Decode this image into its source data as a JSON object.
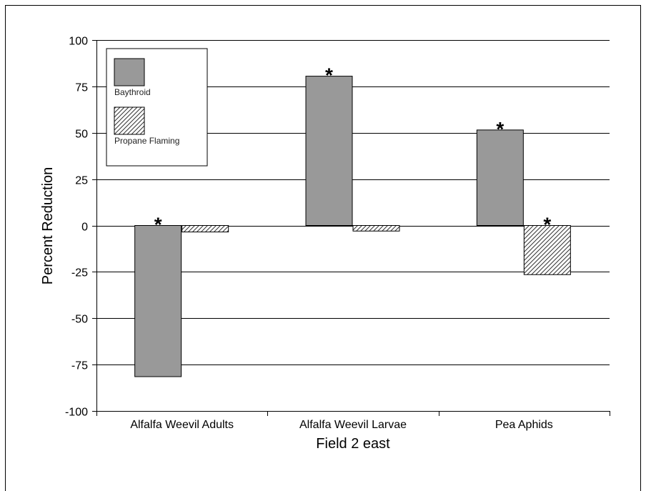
{
  "chart_data": {
    "type": "bar",
    "xlabel": "Field 2 east",
    "ylabel": "Percent Reduction",
    "ylim": [
      -100,
      100
    ],
    "yticks": [
      100,
      75,
      50,
      25,
      0,
      -25,
      -50,
      -75,
      -100
    ],
    "categories": [
      "Alfalfa Weevil Adults",
      "Alfalfa Weevil Larvae",
      "Pea Aphids"
    ],
    "series": [
      {
        "name": "Baythroid",
        "values": [
          -81.5,
          80.5,
          51.5
        ],
        "fill": "#999999",
        "pattern": "solid",
        "significant": [
          true,
          true,
          true
        ]
      },
      {
        "name": "Propane Flaming",
        "values": [
          -3.5,
          -3,
          -26.5
        ],
        "fill": "#ffffff",
        "pattern": "diagonal-hatch",
        "significant": [
          false,
          false,
          true
        ]
      }
    ],
    "significance_marker": "*",
    "grid": true,
    "legend_position": "top-left"
  }
}
